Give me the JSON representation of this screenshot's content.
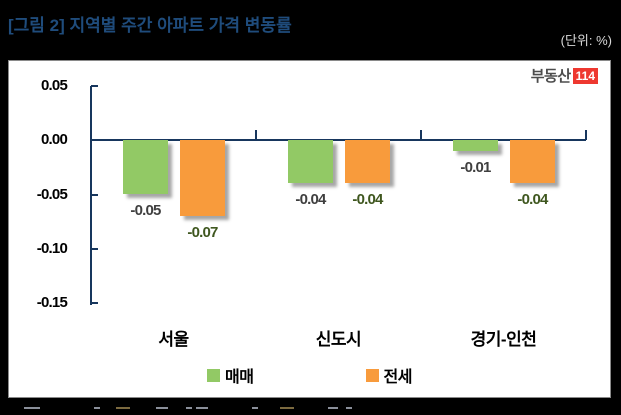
{
  "header": {
    "title": "[그림 2] 지역별 주간 아파트 가격 변동률",
    "unit": "(단위: %)",
    "title_color": "#1F4C7C"
  },
  "logo": {
    "text": "부동산",
    "badge": "114",
    "badge_color": "#EE3830",
    "text_color": "#4D4D4D"
  },
  "chart_data": {
    "type": "bar",
    "title": "지역별 주간 아파트 가격 변동률",
    "unit": "%",
    "categories": [
      "서울",
      "신도시",
      "경기-인천"
    ],
    "series": [
      {
        "name": "매매",
        "color": "#92C965",
        "label_color": "#3F3F3F",
        "values": [
          -0.05,
          -0.04,
          -0.01
        ]
      },
      {
        "name": "전세",
        "color": "#F89B3C",
        "label_color": "#3F571F",
        "values": [
          -0.07,
          -0.04,
          -0.04
        ]
      }
    ],
    "yticks": [
      0.05,
      0.0,
      -0.05,
      -0.1,
      -0.15
    ],
    "ylim": [
      -0.15,
      0.05
    ],
    "grid": false,
    "legend_position": "bottom",
    "axis_color": "#17365D",
    "value_label_format": "0.00",
    "bar_shadow": true
  }
}
